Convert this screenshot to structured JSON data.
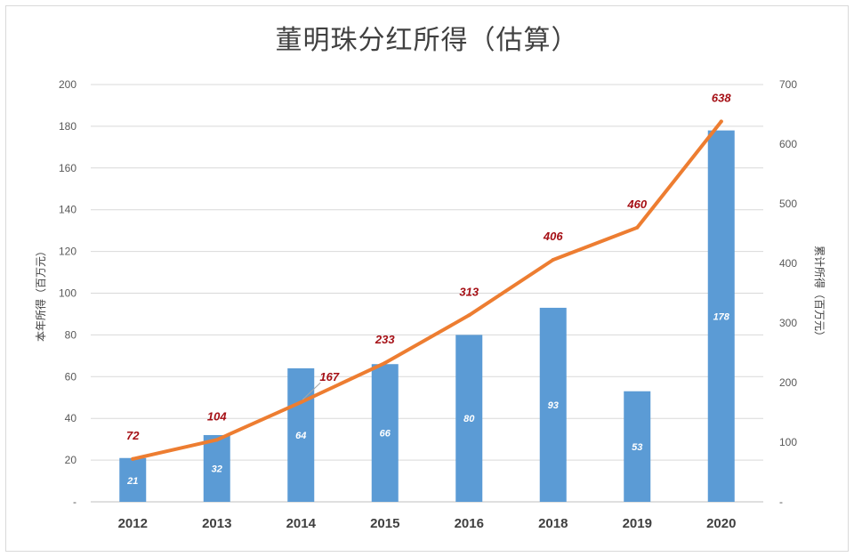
{
  "chart_data": {
    "type": "bar",
    "title": "董明珠分红所得（估算）",
    "categories": [
      "2012",
      "2013",
      "2014",
      "2015",
      "2016",
      "2018",
      "2019",
      "2020"
    ],
    "series": [
      {
        "name": "本年所得",
        "kind": "bar",
        "axis": "left",
        "values": [
          21,
          32,
          64,
          66,
          80,
          93,
          53,
          178
        ]
      },
      {
        "name": "累计所得",
        "kind": "line",
        "axis": "right",
        "values": [
          72,
          104,
          167,
          233,
          313,
          406,
          460,
          638
        ]
      }
    ],
    "ylabel": "本年所得（百万元）",
    "y2label": "累计所得（百万元）",
    "ylim": [
      0,
      200
    ],
    "y2lim": [
      0,
      700
    ],
    "yticks": [
      "-",
      "20",
      "40",
      "60",
      "80",
      "100",
      "120",
      "140",
      "160",
      "180",
      "200"
    ],
    "y2ticks": [
      "-",
      "100",
      "200",
      "300",
      "400",
      "500",
      "600",
      "700"
    ],
    "grid": true,
    "colors": {
      "bar": "#5b9bd5",
      "line": "#ed7d31",
      "line_label": "#a50f15"
    }
  }
}
